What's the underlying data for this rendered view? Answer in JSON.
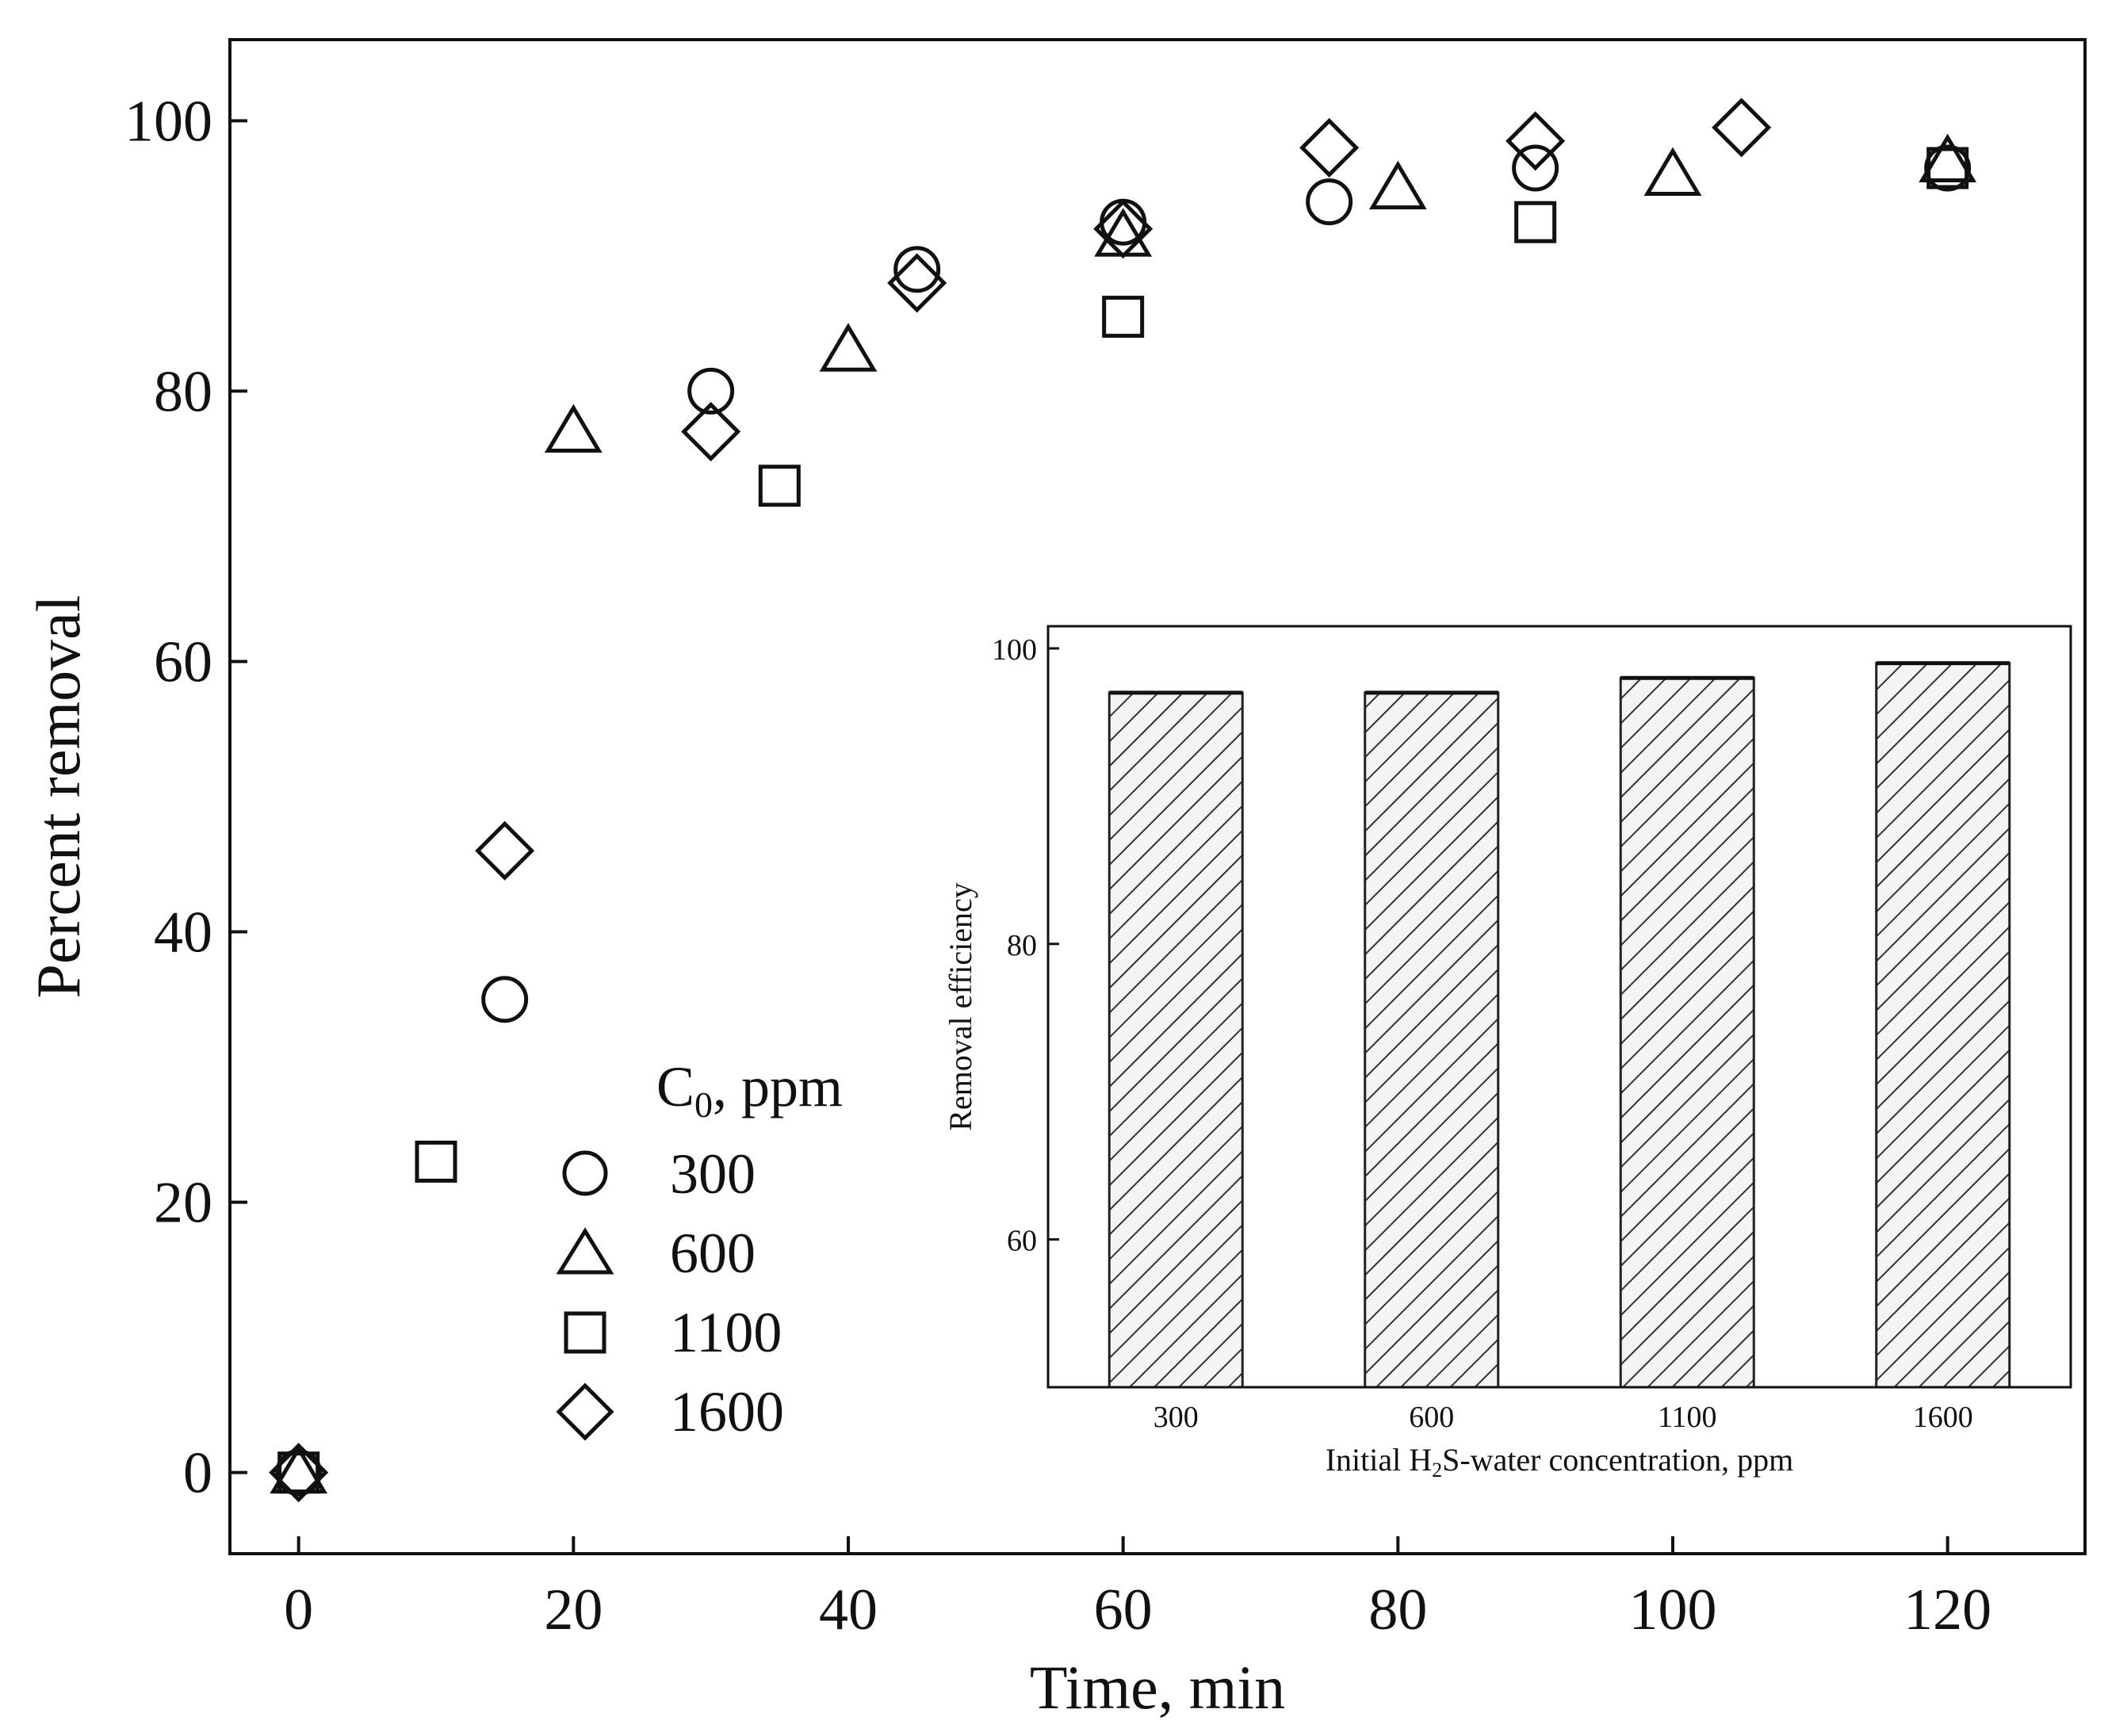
{
  "chart_data": [
    {
      "type": "scatter",
      "xlabel": "Time, min",
      "ylabel": "Percent removal",
      "xlim": [
        -5,
        130
      ],
      "ylim": [
        -6,
        106
      ],
      "xticks": [
        0,
        20,
        40,
        60,
        80,
        100,
        120
      ],
      "yticks": [
        0,
        20,
        40,
        60,
        80,
        100
      ],
      "legend": {
        "title_main": "C",
        "title_sub": "0",
        "title_suffix": ", ppm",
        "placement": "center-left"
      },
      "series": [
        {
          "name": "300",
          "marker": "circle",
          "x": [
            0,
            15,
            30,
            45,
            60,
            75,
            90,
            120
          ],
          "y": [
            0,
            35,
            80,
            89,
            92.5,
            94,
            96.5,
            96.5
          ]
        },
        {
          "name": "600",
          "marker": "triangle",
          "x": [
            0,
            20,
            40,
            60,
            80,
            100,
            120
          ],
          "y": [
            0,
            77,
            83,
            91.5,
            95,
            96,
            97
          ]
        },
        {
          "name": "1100",
          "marker": "square",
          "x": [
            0,
            10,
            35,
            60,
            90,
            120
          ],
          "y": [
            0,
            23,
            73,
            85.5,
            92.5,
            96.5
          ]
        },
        {
          "name": "1600",
          "marker": "diamond",
          "x": [
            0,
            15,
            30,
            45,
            60,
            75,
            90,
            105
          ],
          "y": [
            0,
            46,
            77,
            88,
            92,
            98,
            98.5,
            99.5
          ]
        }
      ]
    },
    {
      "type": "bar",
      "title": "",
      "xlabel_pre": "Initial H",
      "xlabel_sub": "2",
      "xlabel_post": "S-water concentration, ppm",
      "ylabel": "Removal efficiency",
      "ylim": [
        50,
        101.5
      ],
      "yticks": [
        60,
        80,
        100
      ],
      "categories": [
        "300",
        "600",
        "1100",
        "1600"
      ],
      "values": [
        97,
        97,
        98,
        99
      ]
    }
  ]
}
